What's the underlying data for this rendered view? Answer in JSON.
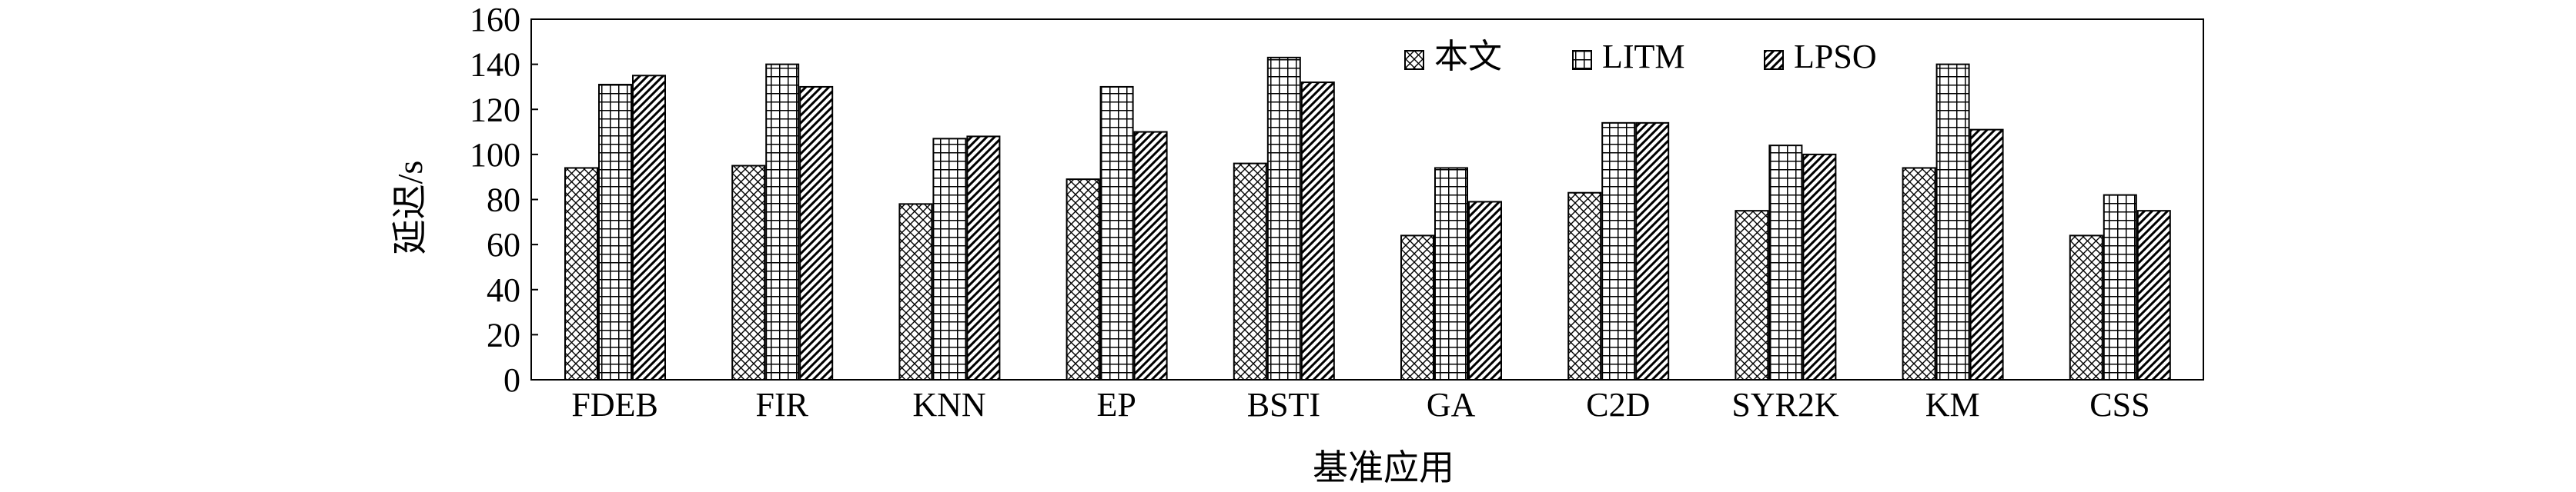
{
  "chart_data": {
    "type": "bar",
    "title": "",
    "xlabel": "基准应用",
    "ylabel": "延迟/s",
    "ylim": [
      0,
      160
    ],
    "yticks": [
      0,
      20,
      40,
      60,
      80,
      100,
      120,
      140,
      160
    ],
    "grid": false,
    "legend_position": "top-right",
    "categories": [
      "FDEB",
      "FIR",
      "KNN",
      "EP",
      "BSTI",
      "GA",
      "C2D",
      "SYR2K",
      "KM",
      "CSS"
    ],
    "series": [
      {
        "name": "本文",
        "pattern": "diamond-cross-hatch",
        "values": [
          94,
          95,
          78,
          89,
          96,
          64,
          83,
          75,
          94,
          64
        ]
      },
      {
        "name": "LITM",
        "pattern": "grid",
        "values": [
          131,
          140,
          107,
          130,
          143,
          94,
          114,
          104,
          140,
          82
        ]
      },
      {
        "name": "LPSO",
        "pattern": "diagonal",
        "values": [
          135,
          130,
          108,
          110,
          132,
          79,
          114,
          100,
          111,
          75
        ]
      }
    ],
    "colors": {
      "bar_fill": "#ffffff",
      "stroke": "#000000"
    }
  }
}
